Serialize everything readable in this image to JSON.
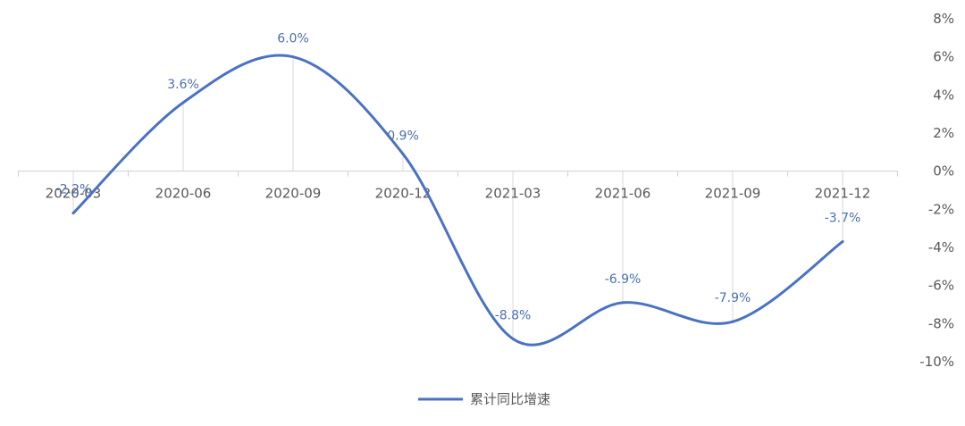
{
  "chart_data": {
    "type": "line",
    "categories": [
      "2020-03",
      "2020-06",
      "2020-09",
      "2020-12",
      "2021-03",
      "2021-06",
      "2021-09",
      "2021-12"
    ],
    "series": [
      {
        "name": "累计同比增速",
        "values": [
          -2.2,
          3.6,
          6.0,
          0.9,
          -8.8,
          -6.9,
          -7.9,
          -3.7
        ],
        "labels": [
          "-2.2%",
          "3.6%",
          "6.0%",
          "0.9%",
          "-8.8%",
          "-6.9%",
          "-7.9%",
          "-3.7%"
        ]
      }
    ],
    "yaxis": {
      "min": -10,
      "max": 8,
      "ticks": [
        8,
        6,
        4,
        2,
        0,
        -2,
        -4,
        -6,
        -8,
        -10
      ],
      "tick_labels": [
        "8%",
        "6%",
        "4%",
        "2%",
        "0%",
        "-2%",
        "-4%",
        "-6%",
        "-8%",
        "-10%"
      ],
      "position": "right"
    },
    "line_color": "#4a72c4",
    "grid": "vertical at categories",
    "legend": "bottom-center",
    "title": "",
    "xlabel": "",
    "ylabel": ""
  }
}
